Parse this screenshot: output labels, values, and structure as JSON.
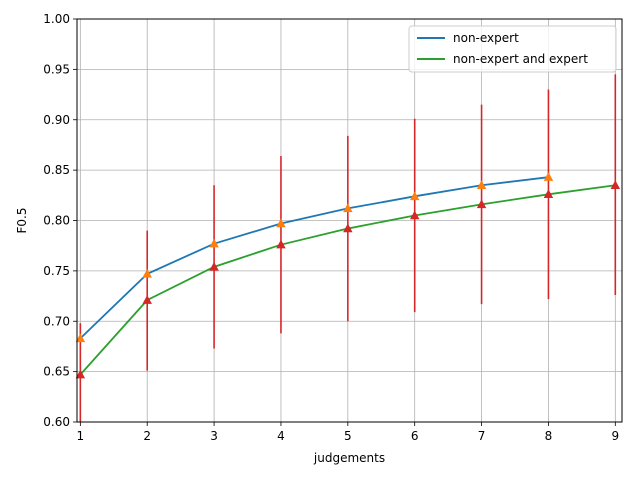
{
  "chart_data": {
    "type": "line",
    "xlabel": "judgements",
    "ylabel": "F0.5",
    "xlim": [
      0.95,
      9.1
    ],
    "ylim": [
      0.6,
      1.0
    ],
    "x": [
      1,
      2,
      3,
      4,
      5,
      6,
      7,
      8,
      9
    ],
    "xticks": [
      "1",
      "2",
      "3",
      "4",
      "5",
      "6",
      "7",
      "8",
      "9"
    ],
    "yticks": [
      "0.60",
      "0.65",
      "0.70",
      "0.75",
      "0.80",
      "0.85",
      "0.90",
      "0.95",
      "1.00"
    ],
    "grid": true,
    "legend_position": "top-right",
    "series": [
      {
        "name": "non-expert",
        "color": "#1f77b4",
        "x": [
          1,
          2,
          3,
          4,
          5,
          6,
          7,
          8
        ],
        "values": [
          0.683,
          0.747,
          0.777,
          0.797,
          0.812,
          0.824,
          0.835,
          0.843
        ],
        "marker_color": "#ff7f0e"
      },
      {
        "name": "non-expert and expert",
        "color": "#2ca02c",
        "x": [
          1,
          2,
          3,
          4,
          5,
          6,
          7,
          8,
          9
        ],
        "values": [
          0.647,
          0.721,
          0.754,
          0.776,
          0.792,
          0.805,
          0.816,
          0.826,
          0.835
        ],
        "marker_color": "#d62728",
        "error_low": [
          0.598,
          0.651,
          0.673,
          0.688,
          0.7,
          0.709,
          0.717,
          0.722,
          0.726
        ],
        "error_high": [
          0.698,
          0.79,
          0.835,
          0.864,
          0.884,
          0.901,
          0.915,
          0.93,
          0.945
        ],
        "error_color": "#d62728"
      }
    ]
  }
}
